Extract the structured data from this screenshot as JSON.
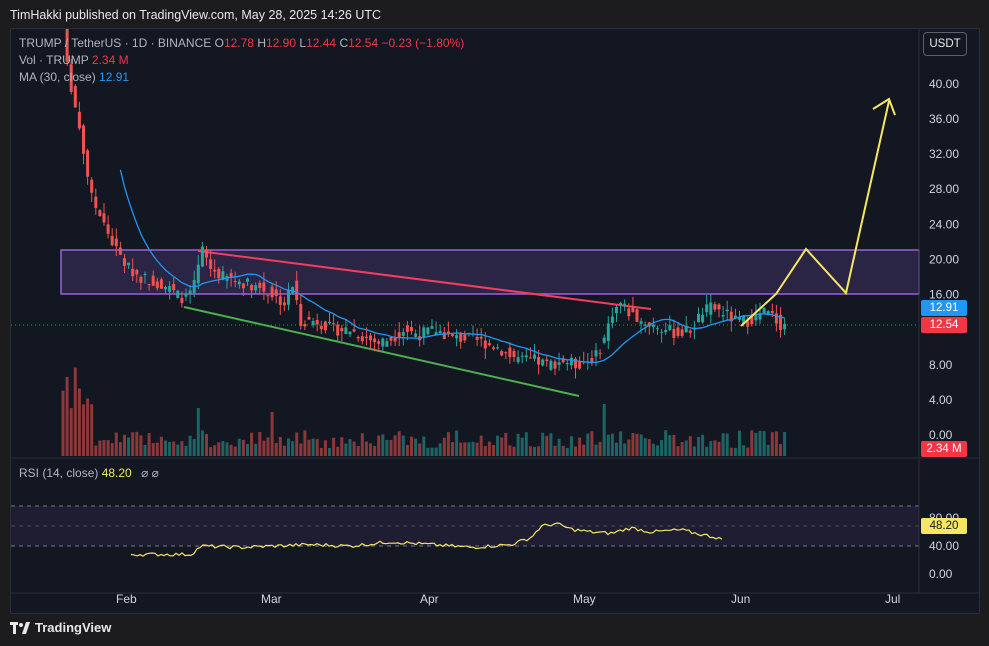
{
  "header": {
    "published": "TimHakki published on TradingView.com, May 28, 2025 14:26 UTC"
  },
  "legend": {
    "symbol": "TRUMP / TetherUS · 1D · BINANCE",
    "o_label": "O",
    "o": "12.78",
    "h_label": "H",
    "h": "12.90",
    "l_label": "L",
    "l": "12.44",
    "c_label": "C",
    "c": "12.54",
    "change": "−0.23 (−1.80%)",
    "vol_label": "Vol · TRUMP",
    "vol": "2.34 M",
    "ma_label": "MA (30, close)",
    "ma": "12.91"
  },
  "currency_button": "USDT",
  "price_axis": [
    "40.00",
    "36.00",
    "32.00",
    "28.00",
    "24.00",
    "20.00",
    "16.00",
    "8.00",
    "4.00",
    "0.00"
  ],
  "tags": {
    "ma": "12.91",
    "last": "12.54",
    "volume": "2.34 M",
    "rsi": "48.20"
  },
  "rsi": {
    "label": "RSI (14, close)",
    "value": "48.20",
    "icons": "⌀ ⌀",
    "axis": [
      "80.00",
      "40.00",
      "0.00"
    ]
  },
  "time_axis": [
    "Feb",
    "Mar",
    "Apr",
    "May",
    "Jun",
    "Jul"
  ],
  "footer": {
    "brand": "TradingView"
  },
  "colors": {
    "up": "#26a69a",
    "down": "#ef5350",
    "ma": "#2196f3",
    "zone": "#8e4ed4",
    "resistance": "#f23d5f",
    "support": "#4caf50",
    "projection": "#f5e663",
    "rsi": "#f5e663",
    "rsi_band": "#7e57c2"
  }
}
